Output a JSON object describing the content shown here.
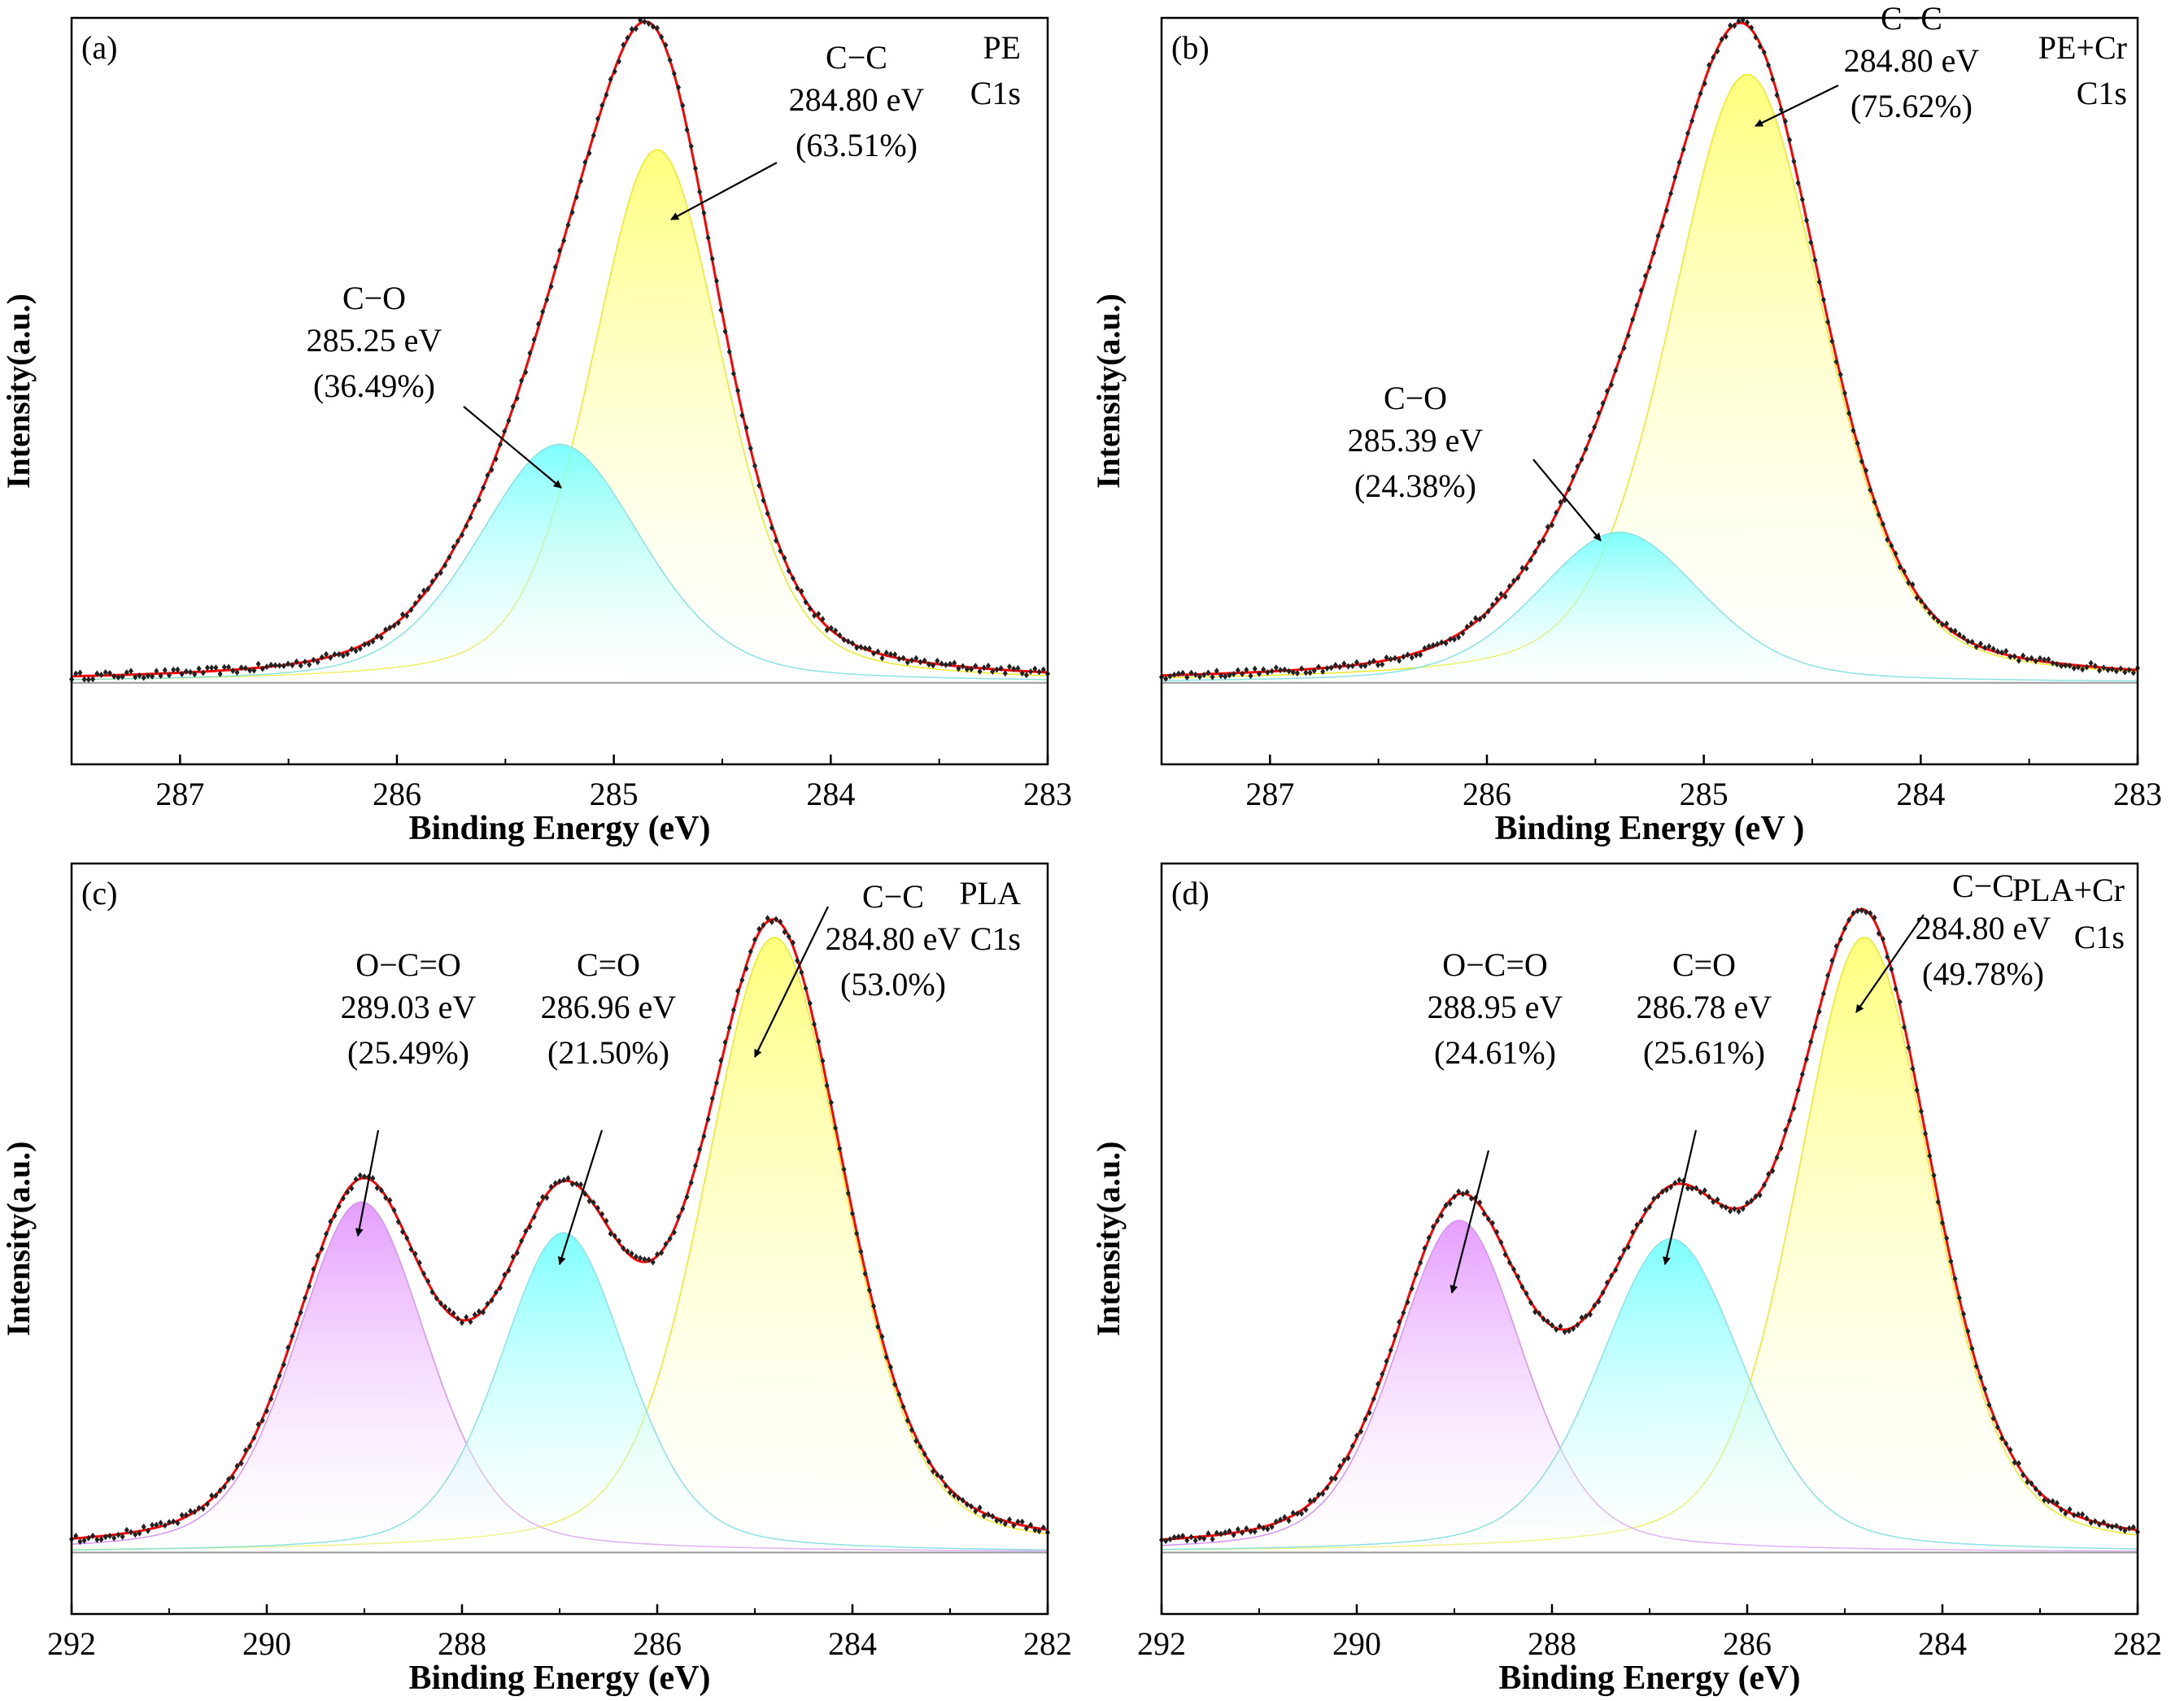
{
  "chart_data": [
    {
      "panel": "(a)",
      "type": "line",
      "sample": "PE",
      "spectrum": "C1s",
      "xlabel": "Binding Energy (eV)",
      "ylabel": "Intensity(a.u.)",
      "xlim": [
        287.5,
        283
      ],
      "x_reversed": true,
      "xticks": [
        "287",
        "286",
        "285",
        "284",
        "283"
      ],
      "ylim": [
        -0.12,
        1.07
      ],
      "baseline": 0.01,
      "peaks": [
        {
          "name": "C-C",
          "center": 284.8,
          "fwhm": 0.72,
          "height": 0.85,
          "color": "#ffff66",
          "line": "#e6e600",
          "label_name": "C−C",
          "label_energy": "284.80 eV",
          "label_pct": "(63.51%)"
        },
        {
          "name": "C-O",
          "center": 285.25,
          "fwhm": 0.9,
          "height": 0.38,
          "color": "#66ffff",
          "line": "#77dddd",
          "label_name": "C−O",
          "label_energy": "285.25 eV",
          "label_pct": "(36.49%)"
        }
      ]
    },
    {
      "panel": "(b)",
      "type": "line",
      "sample": "PE+Cr",
      "spectrum": "C1s",
      "xlabel": "Binding Energy (eV )",
      "ylabel": "Intensity(a.u.)",
      "xlim": [
        287.5,
        283
      ],
      "x_reversed": true,
      "xticks": [
        "287",
        "286",
        "285",
        "284",
        "283"
      ],
      "ylim": [
        -0.12,
        1.07
      ],
      "baseline": 0.01,
      "peaks": [
        {
          "name": "C-C",
          "center": 284.8,
          "fwhm": 0.84,
          "height": 0.97,
          "color": "#ffff66",
          "line": "#e6e600",
          "label_name": "C−C",
          "label_energy": "284.80 eV",
          "label_pct": "(75.62%)"
        },
        {
          "name": "C-O",
          "center": 285.39,
          "fwhm": 0.9,
          "height": 0.24,
          "color": "#66ffff",
          "line": "#77dddd",
          "label_name": "C−O",
          "label_energy": "285.39 eV",
          "label_pct": "(24.38%)"
        }
      ]
    },
    {
      "panel": "(c)",
      "type": "line",
      "sample": "PLA",
      "spectrum": "C1s",
      "xlabel": "Binding Energy (eV)",
      "ylabel": "Intensity(a.u.)",
      "xlim": [
        292,
        282
      ],
      "x_reversed": true,
      "xticks": [
        "292",
        "290",
        "288",
        "286",
        "284",
        "282"
      ],
      "ylim": [
        -0.1,
        1.12
      ],
      "baseline": 0.0,
      "peaks": [
        {
          "name": "C-C",
          "center": 284.8,
          "fwhm": 1.7,
          "height": 1.0,
          "color": "#ffff66",
          "line": "#e6e600",
          "label_name": "C−C",
          "label_energy": "284.80 eV",
          "label_pct": "(53.0%)"
        },
        {
          "name": "C=O",
          "center": 286.96,
          "fwhm": 1.55,
          "height": 0.52,
          "color": "#66ffff",
          "line": "#77dddd",
          "label_name": "C=O",
          "label_energy": "286.96 eV",
          "label_pct": "(21.50%)"
        },
        {
          "name": "O-C=O",
          "center": 289.03,
          "fwhm": 1.6,
          "height": 0.57,
          "color": "#e08cff",
          "line": "#d080f0",
          "label_name": "O−C=O",
          "label_energy": "289.03 eV",
          "label_pct": "(25.49%)"
        }
      ]
    },
    {
      "panel": "(d)",
      "type": "line",
      "sample": "PLA+Cr",
      "spectrum": "C1s",
      "xlabel": "Binding Energy (eV)",
      "ylabel": "Intensity(a.u.)",
      "xlim": [
        292,
        282
      ],
      "x_reversed": true,
      "xticks": [
        "292",
        "290",
        "288",
        "286",
        "284",
        "282"
      ],
      "ylim": [
        -0.1,
        1.12
      ],
      "baseline": 0.0,
      "peaks": [
        {
          "name": "C-C",
          "center": 284.8,
          "fwhm": 1.65,
          "height": 1.0,
          "color": "#ffff66",
          "line": "#e6e600",
          "label_name": "C−C",
          "label_energy": "284.80 eV",
          "label_pct": "(49.78%)"
        },
        {
          "name": "C=O",
          "center": 286.78,
          "fwhm": 1.75,
          "height": 0.51,
          "color": "#66ffff",
          "line": "#77dddd",
          "label_name": "C=O",
          "label_energy": "286.78 eV",
          "label_pct": "(25.61%)"
        },
        {
          "name": "O-C=O",
          "center": 288.95,
          "fwhm": 1.55,
          "height": 0.54,
          "color": "#e08cff",
          "line": "#d080f0",
          "label_name": "O−C=O",
          "label_energy": "288.95 eV",
          "label_pct": "(24.61%)"
        }
      ]
    }
  ],
  "colors": {
    "envelope": "#ff0000",
    "data_points": "#222222",
    "baseline": "#999999"
  }
}
